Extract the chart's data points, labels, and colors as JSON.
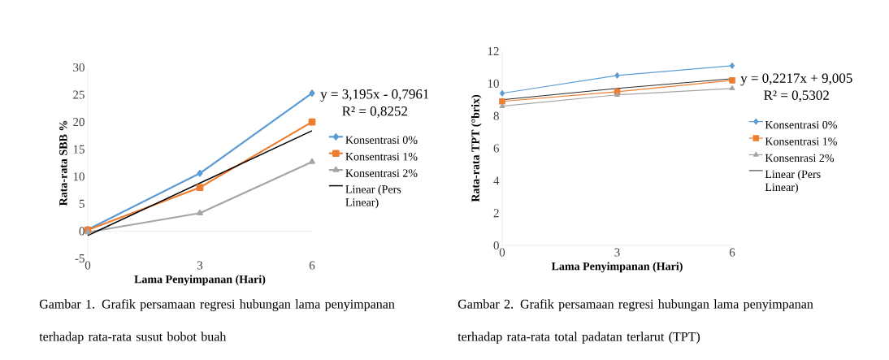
{
  "chart_data": [
    {
      "type": "line",
      "xlabel": "Lama Penyimpanan (Hari)",
      "ylabel": "Rata-rata SBB %",
      "x": [
        0,
        3,
        6
      ],
      "xlim": [
        0,
        6
      ],
      "xticks": [
        0,
        3,
        6
      ],
      "ylim": [
        -5,
        30
      ],
      "yticks": [
        -5,
        0,
        5,
        10,
        15,
        20,
        25,
        30
      ],
      "grid": false,
      "legend": "right",
      "series": [
        {
          "name": "Konsentrasi 0%",
          "color": "#5b9bd5",
          "marker": "diamond",
          "values": [
            0.3,
            10.6,
            25.3
          ]
        },
        {
          "name": "Konsentrasi 1%",
          "color": "#ed7d31",
          "marker": "square",
          "values": [
            0.2,
            8.0,
            20.0
          ]
        },
        {
          "name": "Konsentrasi 2%",
          "color": "#a5a5a5",
          "marker": "triangle",
          "values": [
            -0.2,
            3.3,
            12.7
          ]
        },
        {
          "name": "Linear (Pers Linear)",
          "color": "#000000",
          "marker": "none",
          "values": [
            -0.8,
            8.8,
            18.4
          ]
        }
      ],
      "annotations": [
        "y = 3,195x - 0,7961",
        "R² = 0,8252",
        "Gambar 1. Grafik persamaan regresi hubungan lama penyimpanan terhadap rata-rata susut bobot buah"
      ]
    },
    {
      "type": "line",
      "xlabel": "Lama Penyimpanan (Hari)",
      "ylabel": "Rata-rata TPT (°brix)",
      "x": [
        0,
        3,
        6
      ],
      "xlim": [
        0,
        6
      ],
      "xticks": [
        0,
        3,
        6
      ],
      "ylim": [
        0,
        12
      ],
      "yticks": [
        0,
        2,
        4,
        6,
        8,
        10,
        12
      ],
      "grid": false,
      "legend": "right",
      "series": [
        {
          "name": "Konsentrasi 0%",
          "color": "#5b9bd5",
          "marker": "diamond",
          "values": [
            9.4,
            10.5,
            11.1
          ]
        },
        {
          "name": "Konsentrasi 1%",
          "color": "#ed7d31",
          "marker": "square",
          "values": [
            8.9,
            9.5,
            10.2
          ]
        },
        {
          "name": "Konsenrasi 2%",
          "color": "#a5a5a5",
          "marker": "triangle",
          "values": [
            8.6,
            9.3,
            9.7
          ]
        },
        {
          "name": "Linear (Pers Linear)",
          "color": "#000000",
          "marker": "none",
          "values": [
            9.0,
            9.7,
            10.3
          ]
        }
      ],
      "annotations": [
        "y = 0,2217x + 9,005",
        "R² = 0,5302",
        "Gambar 2. Grafik persamaan regresi hubungan lama penyimpanan terhadap rata-rata total padatan terlarut (TPT)"
      ]
    }
  ]
}
